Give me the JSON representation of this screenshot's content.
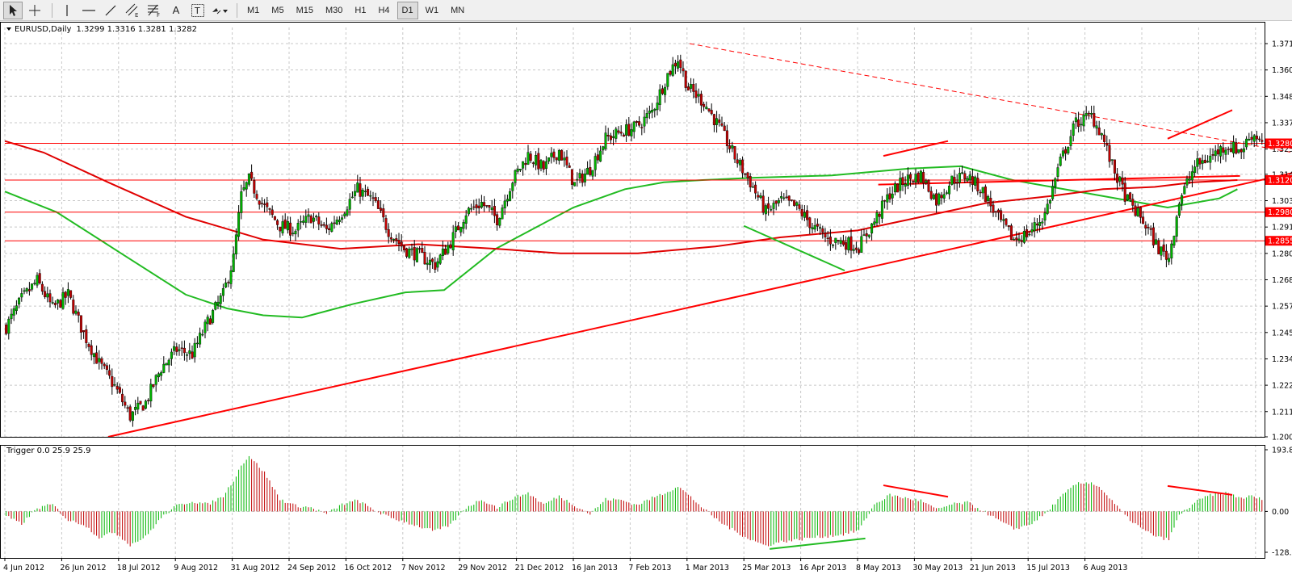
{
  "toolbar": {
    "tools": [
      {
        "name": "cursor-tool-icon"
      },
      {
        "name": "crosshair-tool-icon"
      },
      {
        "name": "vertical-line-tool-icon"
      },
      {
        "name": "horizontal-line-tool-icon"
      },
      {
        "name": "trendline-tool-icon"
      },
      {
        "name": "equidistant-channel-tool-icon",
        "label": "E"
      },
      {
        "name": "fibonacci-tool-icon",
        "label": "F"
      },
      {
        "name": "text-tool-icon",
        "label": "A"
      },
      {
        "name": "text-label-tool-icon",
        "label": "T"
      },
      {
        "name": "arrows-tool-icon"
      }
    ],
    "timeframes": [
      "M1",
      "M5",
      "M15",
      "M30",
      "H1",
      "H4",
      "D1",
      "W1",
      "MN"
    ],
    "active_timeframe": "D1"
  },
  "price_window": {
    "title": "EURUSD,Daily",
    "ohlc": "1.3299 1.3316 1.3281 1.3282"
  },
  "indicator_window": {
    "title": "Trigger 0.0 25.9 25.9"
  },
  "colors": {
    "bull": "#00b400",
    "bear": "#c00000",
    "ma_fast": "#22bb22",
    "ma_slow": "#e00000",
    "level": "#ff0000",
    "grid": "#c8c8c8"
  },
  "chart_data": [
    {
      "type": "candlestick",
      "symbol": "EURUSD",
      "timeframe": "Daily",
      "ylim": [
        1.2,
        1.3715
      ],
      "yticks": [
        "1.3715",
        "1.3600",
        "1.3485",
        "1.3370",
        "1.3255",
        "1.3145",
        "1.3030",
        "1.2915",
        "1.2800",
        "1.2685",
        "1.2570",
        "1.2455",
        "1.2340",
        "1.2225",
        "1.2110",
        "1.2000"
      ],
      "xticks": [
        "4 Jun 2012",
        "26 Jun 2012",
        "18 Jul 2012",
        "9 Aug 2012",
        "31 Aug 2012",
        "24 Sep 2012",
        "16 Oct 2012",
        "7 Nov 2012",
        "29 Nov 2012",
        "21 Dec 2012",
        "16 Jan 2013",
        "7 Feb 2013",
        "1 Mar 2013",
        "25 Mar 2013",
        "16 Apr 2013",
        "8 May 2013",
        "30 May 2013",
        "21 Jun 2013",
        "15 Jul 2013",
        "6 Aug 2013"
      ],
      "close_path": [
        [
          0,
          1.248
        ],
        [
          6,
          1.26
        ],
        [
          12,
          1.268
        ],
        [
          18,
          1.256
        ],
        [
          24,
          1.262
        ],
        [
          30,
          1.245
        ],
        [
          36,
          1.232
        ],
        [
          42,
          1.222
        ],
        [
          48,
          1.209
        ],
        [
          54,
          1.215
        ],
        [
          60,
          1.23
        ],
        [
          66,
          1.238
        ],
        [
          72,
          1.236
        ],
        [
          78,
          1.25
        ],
        [
          84,
          1.262
        ],
        [
          88,
          1.278
        ],
        [
          91,
          1.305
        ],
        [
          94,
          1.312
        ],
        [
          100,
          1.3
        ],
        [
          106,
          1.292
        ],
        [
          112,
          1.29
        ],
        [
          118,
          1.296
        ],
        [
          124,
          1.29
        ],
        [
          130,
          1.298
        ],
        [
          136,
          1.308
        ],
        [
          142,
          1.303
        ],
        [
          148,
          1.29
        ],
        [
          154,
          1.282
        ],
        [
          160,
          1.279
        ],
        [
          166,
          1.275
        ],
        [
          172,
          1.285
        ],
        [
          178,
          1.298
        ],
        [
          184,
          1.302
        ],
        [
          190,
          1.295
        ],
        [
          196,
          1.312
        ],
        [
          202,
          1.323
        ],
        [
          208,
          1.317
        ],
        [
          214,
          1.325
        ],
        [
          220,
          1.31
        ],
        [
          226,
          1.317
        ],
        [
          232,
          1.33
        ],
        [
          238,
          1.333
        ],
        [
          244,
          1.335
        ],
        [
          250,
          1.342
        ],
        [
          256,
          1.358
        ],
        [
          260,
          1.365
        ],
        [
          264,
          1.352
        ],
        [
          270,
          1.346
        ],
        [
          276,
          1.335
        ],
        [
          282,
          1.322
        ],
        [
          288,
          1.311
        ],
        [
          294,
          1.298
        ],
        [
          300,
          1.303
        ],
        [
          306,
          1.3
        ],
        [
          312,
          1.292
        ],
        [
          318,
          1.286
        ],
        [
          324,
          1.285
        ],
        [
          330,
          1.283
        ],
        [
          336,
          1.294
        ],
        [
          342,
          1.306
        ],
        [
          348,
          1.312
        ],
        [
          354,
          1.314
        ],
        [
          360,
          1.303
        ],
        [
          366,
          1.312
        ],
        [
          372,
          1.314
        ],
        [
          378,
          1.307
        ],
        [
          384,
          1.295
        ],
        [
          390,
          1.286
        ],
        [
          396,
          1.289
        ],
        [
          402,
          1.297
        ],
        [
          408,
          1.32
        ],
        [
          414,
          1.337
        ],
        [
          420,
          1.34
        ],
        [
          424,
          1.332
        ],
        [
          428,
          1.318
        ],
        [
          434,
          1.303
        ],
        [
          440,
          1.294
        ],
        [
          446,
          1.282
        ],
        [
          450,
          1.278
        ],
        [
          454,
          1.303
        ],
        [
          460,
          1.318
        ],
        [
          466,
          1.322
        ],
        [
          472,
          1.327
        ],
        [
          478,
          1.325
        ],
        [
          482,
          1.332
        ],
        [
          486,
          1.33
        ]
      ],
      "moving_averages": [
        {
          "color": "#22bb22",
          "points": [
            [
              0,
              1.307
            ],
            [
              20,
              1.298
            ],
            [
              45,
              1.28
            ],
            [
              70,
              1.262
            ],
            [
              86,
              1.256
            ],
            [
              100,
              1.253
            ],
            [
              115,
              1.252
            ],
            [
              135,
              1.258
            ],
            [
              155,
              1.263
            ],
            [
              170,
              1.264
            ],
            [
              190,
              1.282
            ],
            [
              220,
              1.3
            ],
            [
              240,
              1.308
            ],
            [
              255,
              1.311
            ],
            [
              270,
              1.312
            ],
            [
              290,
              1.313
            ],
            [
              320,
              1.314
            ],
            [
              350,
              1.317
            ],
            [
              370,
              1.318
            ],
            [
              390,
              1.312
            ],
            [
              405,
              1.309
            ],
            [
              420,
              1.306
            ],
            [
              435,
              1.303
            ],
            [
              450,
              1.3
            ],
            [
              470,
              1.304
            ],
            [
              477,
              1.308
            ]
          ]
        },
        {
          "color": "#e00000",
          "points": [
            [
              0,
              1.329
            ],
            [
              15,
              1.324
            ],
            [
              40,
              1.311
            ],
            [
              70,
              1.296
            ],
            [
              100,
              1.286
            ],
            [
              130,
              1.282
            ],
            [
              160,
              1.284
            ],
            [
              190,
              1.282
            ],
            [
              215,
              1.28
            ],
            [
              245,
              1.28
            ],
            [
              275,
              1.283
            ],
            [
              300,
              1.287
            ],
            [
              330,
              1.29
            ],
            [
              355,
              1.296
            ],
            [
              380,
              1.302
            ],
            [
              405,
              1.305
            ],
            [
              425,
              1.308
            ],
            [
              445,
              1.309
            ],
            [
              460,
              1.311
            ],
            [
              477,
              1.312
            ]
          ]
        }
      ],
      "horizontal_levels": [
        {
          "price": 1.328,
          "label": "1.3280"
        },
        {
          "price": 1.312,
          "label": "1.3120"
        },
        {
          "price": 1.298,
          "label": "1.2980"
        },
        {
          "price": 1.2855,
          "label": "1.2855"
        }
      ],
      "trendlines": [
        {
          "color": "#ff0000",
          "style": "solid",
          "from": [
            40,
            1.2
          ],
          "to": [
            518,
            1.32
          ]
        },
        {
          "color": "#ff0000",
          "style": "dashed",
          "from": [
            265,
            1.3715
          ],
          "to": [
            518,
            1.32
          ]
        },
        {
          "color": "#ff0000",
          "style": "solid",
          "from": [
            338,
            1.31
          ],
          "to": [
            478,
            1.3138
          ]
        },
        {
          "color": "#22bb22",
          "style": "solid",
          "from": [
            286,
            1.292
          ],
          "to": [
            325,
            1.2725
          ]
        },
        {
          "color": "#ff0000",
          "style": "solid",
          "from": [
            340,
            1.3225
          ],
          "to": [
            365,
            1.329
          ]
        },
        {
          "color": "#ff0000",
          "style": "solid",
          "from": [
            450,
            1.33
          ],
          "to": [
            475,
            1.3425
          ]
        }
      ]
    },
    {
      "type": "histogram",
      "name": "Trigger",
      "ylim": [
        -128.4,
        193.8
      ],
      "yticks": [
        "193.8",
        "0.00",
        "-128.4"
      ],
      "wave_anchors": [
        [
          0,
          -15
        ],
        [
          6,
          -40
        ],
        [
          12,
          10
        ],
        [
          18,
          22
        ],
        [
          24,
          -28
        ],
        [
          30,
          -40
        ],
        [
          36,
          -82
        ],
        [
          42,
          -65
        ],
        [
          48,
          -105
        ],
        [
          54,
          -80
        ],
        [
          60,
          -20
        ],
        [
          66,
          18
        ],
        [
          72,
          32
        ],
        [
          78,
          22
        ],
        [
          84,
          48
        ],
        [
          88,
          98
        ],
        [
          91,
          145
        ],
        [
          94,
          175
        ],
        [
          100,
          122
        ],
        [
          106,
          38
        ],
        [
          112,
          18
        ],
        [
          118,
          12
        ],
        [
          124,
          -8
        ],
        [
          130,
          22
        ],
        [
          136,
          35
        ],
        [
          142,
          6
        ],
        [
          148,
          -18
        ],
        [
          154,
          -32
        ],
        [
          160,
          -48
        ],
        [
          166,
          -62
        ],
        [
          172,
          -42
        ],
        [
          178,
          12
        ],
        [
          184,
          38
        ],
        [
          190,
          12
        ],
        [
          196,
          42
        ],
        [
          202,
          58
        ],
        [
          208,
          22
        ],
        [
          214,
          48
        ],
        [
          220,
          20
        ],
        [
          226,
          -8
        ],
        [
          232,
          38
        ],
        [
          238,
          36
        ],
        [
          244,
          20
        ],
        [
          250,
          42
        ],
        [
          256,
          62
        ],
        [
          260,
          80
        ],
        [
          264,
          52
        ],
        [
          270,
          8
        ],
        [
          276,
          -32
        ],
        [
          282,
          -62
        ],
        [
          288,
          -88
        ],
        [
          294,
          -108
        ],
        [
          300,
          -95
        ],
        [
          306,
          -90
        ],
        [
          312,
          -82
        ],
        [
          318,
          -78
        ],
        [
          324,
          -72
        ],
        [
          330,
          -60
        ],
        [
          336,
          22
        ],
        [
          342,
          52
        ],
        [
          348,
          42
        ],
        [
          354,
          34
        ],
        [
          360,
          6
        ],
        [
          366,
          22
        ],
        [
          372,
          28
        ],
        [
          378,
          2
        ],
        [
          384,
          -28
        ],
        [
          390,
          -55
        ],
        [
          396,
          -42
        ],
        [
          402,
          -8
        ],
        [
          408,
          44
        ],
        [
          414,
          86
        ],
        [
          420,
          92
        ],
        [
          424,
          70
        ],
        [
          428,
          32
        ],
        [
          434,
          -20
        ],
        [
          440,
          -58
        ],
        [
          446,
          -82
        ],
        [
          450,
          -88
        ],
        [
          454,
          -12
        ],
        [
          460,
          28
        ],
        [
          466,
          52
        ],
        [
          472,
          58
        ],
        [
          478,
          42
        ],
        [
          482,
          48
        ],
        [
          486,
          38
        ]
      ],
      "trendlines": [
        {
          "color": "#ff0000",
          "from": [
            340,
            82
          ],
          "to": [
            365,
            46
          ]
        },
        {
          "color": "#ff0000",
          "from": [
            450,
            80
          ],
          "to": [
            475,
            52
          ]
        },
        {
          "color": "#22bb22",
          "from": [
            296,
            -118
          ],
          "to": [
            333,
            -85
          ]
        }
      ]
    }
  ]
}
